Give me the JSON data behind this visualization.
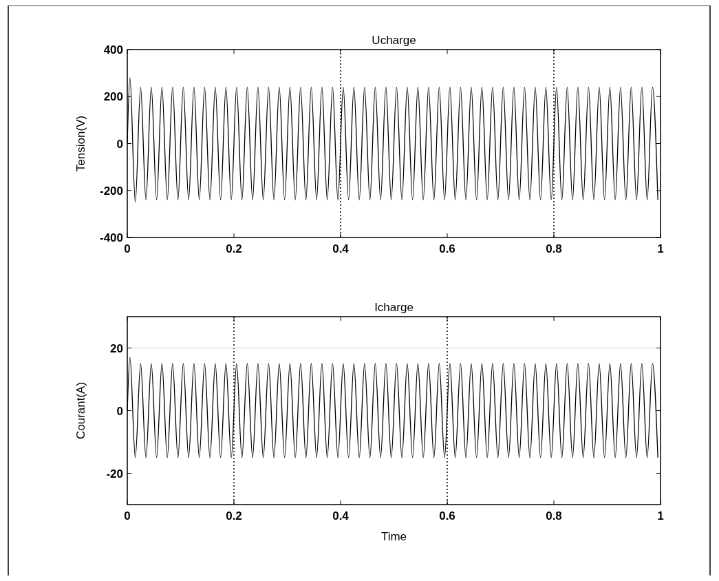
{
  "chart_data": [
    {
      "type": "line",
      "title": "Ucharge",
      "ylabel": "Tension(V)",
      "xlim": [
        0,
        1
      ],
      "xticks": [
        0,
        0.2,
        0.4,
        0.6,
        0.8,
        1
      ],
      "ylim": [
        -400,
        400
      ],
      "yticks": [
        -400,
        -200,
        0,
        200,
        400
      ],
      "grid": false,
      "marker": "none",
      "line_style": "solid",
      "ref_lines": [
        {
          "axis": "x",
          "value": 0.4,
          "color": "#000000",
          "line_style": "dotted"
        },
        {
          "axis": "x",
          "value": 0.8,
          "color": "#000000",
          "line_style": "dotted"
        }
      ],
      "series": [
        {
          "color": "#000000",
          "x": [
            0,
            0.005,
            0.015,
            0.025,
            0.035,
            0.045,
            0.055,
            0.065,
            0.075,
            0.085,
            0.095,
            0.105,
            0.115,
            0.125,
            0.135,
            0.145,
            0.155,
            0.165,
            0.175,
            0.185,
            0.195,
            0.205,
            0.215,
            0.225,
            0.235,
            0.245,
            0.255,
            0.265,
            0.275,
            0.285,
            0.295,
            0.305,
            0.315,
            0.325,
            0.335,
            0.345,
            0.355,
            0.365,
            0.375,
            0.385,
            0.395,
            0.405,
            0.415,
            0.425,
            0.435,
            0.445,
            0.455,
            0.465,
            0.475,
            0.485,
            0.495,
            0.505,
            0.515,
            0.525,
            0.535,
            0.545,
            0.555,
            0.565,
            0.575,
            0.585,
            0.595,
            0.605,
            0.615,
            0.625,
            0.635,
            0.645,
            0.655,
            0.665,
            0.675,
            0.685,
            0.695,
            0.705,
            0.715,
            0.725,
            0.735,
            0.745,
            0.755,
            0.765,
            0.775,
            0.785,
            0.795,
            0.805,
            0.815,
            0.825,
            0.835,
            0.845,
            0.855,
            0.865,
            0.875,
            0.885,
            0.895,
            0.905,
            0.915,
            0.925,
            0.935,
            0.945,
            0.955,
            0.965,
            0.975,
            0.985,
            0.995
          ],
          "values": [
            0,
            280,
            -250,
            240,
            -240,
            240,
            -240,
            240,
            -240,
            240,
            -240,
            240,
            -240,
            240,
            -240,
            240,
            -240,
            240,
            -240,
            240,
            -240,
            240,
            -240,
            240,
            -240,
            240,
            -240,
            240,
            -240,
            240,
            -240,
            240,
            -240,
            240,
            -240,
            240,
            -240,
            240,
            -240,
            240,
            -240,
            240,
            -240,
            240,
            -240,
            240,
            -240,
            240,
            -240,
            240,
            -240,
            240,
            -240,
            240,
            -240,
            240,
            -240,
            240,
            -240,
            240,
            -240,
            240,
            -240,
            240,
            -240,
            240,
            -240,
            240,
            -240,
            240,
            -240,
            240,
            -240,
            240,
            -240,
            240,
            -240,
            240,
            -240,
            240,
            -240,
            240,
            -240,
            240,
            -240,
            240,
            -240,
            240,
            -240,
            240,
            -240,
            240,
            -240,
            240,
            -240,
            240,
            -240,
            240,
            -240,
            240,
            -240
          ]
        }
      ]
    },
    {
      "type": "line",
      "title": "Icharge",
      "xlabel": "Time",
      "ylabel": "Courant(A)",
      "xlim": [
        0,
        1
      ],
      "xticks": [
        0,
        0.2,
        0.4,
        0.6,
        0.8,
        1
      ],
      "ylim": [
        -30,
        30
      ],
      "yticks": [
        -20,
        0,
        20
      ],
      "grid": false,
      "marker": "none",
      "line_style": "solid",
      "ref_lines": [
        {
          "axis": "x",
          "value": 0.2,
          "color": "#000000",
          "line_style": "dotted"
        },
        {
          "axis": "x",
          "value": 0.6,
          "color": "#000000",
          "line_style": "dotted"
        },
        {
          "axis": "y",
          "value": 20,
          "color": "#cccccc",
          "line_style": "solid"
        }
      ],
      "series": [
        {
          "color": "#000000",
          "x": [
            0,
            0.005,
            0.015,
            0.025,
            0.035,
            0.045,
            0.055,
            0.065,
            0.075,
            0.085,
            0.095,
            0.105,
            0.115,
            0.125,
            0.135,
            0.145,
            0.155,
            0.165,
            0.175,
            0.185,
            0.195,
            0.205,
            0.215,
            0.225,
            0.235,
            0.245,
            0.255,
            0.265,
            0.275,
            0.285,
            0.295,
            0.305,
            0.315,
            0.325,
            0.335,
            0.345,
            0.355,
            0.365,
            0.375,
            0.385,
            0.395,
            0.405,
            0.415,
            0.425,
            0.435,
            0.445,
            0.455,
            0.465,
            0.475,
            0.485,
            0.495,
            0.505,
            0.515,
            0.525,
            0.535,
            0.545,
            0.555,
            0.565,
            0.575,
            0.585,
            0.595,
            0.605,
            0.615,
            0.625,
            0.635,
            0.645,
            0.655,
            0.665,
            0.675,
            0.685,
            0.695,
            0.705,
            0.715,
            0.725,
            0.735,
            0.745,
            0.755,
            0.765,
            0.775,
            0.785,
            0.795,
            0.805,
            0.815,
            0.825,
            0.835,
            0.845,
            0.855,
            0.865,
            0.875,
            0.885,
            0.895,
            0.905,
            0.915,
            0.925,
            0.935,
            0.945,
            0.955,
            0.965,
            0.975,
            0.985,
            0.995
          ],
          "values": [
            0,
            17,
            -15,
            15,
            -15,
            15,
            -15,
            15,
            -15,
            15,
            -15,
            15,
            -15,
            15,
            -15,
            15,
            -15,
            15,
            -15,
            15,
            -15,
            15,
            -15,
            15,
            -15,
            15,
            -15,
            15,
            -15,
            15,
            -15,
            15,
            -15,
            15,
            -15,
            15,
            -15,
            15,
            -15,
            15,
            -15,
            15,
            -15,
            15,
            -15,
            15,
            -15,
            15,
            -15,
            15,
            -15,
            15,
            -15,
            15,
            -15,
            15,
            -15,
            15,
            -15,
            15,
            -15,
            15,
            -15,
            15,
            -15,
            15,
            -15,
            15,
            -15,
            15,
            -15,
            15,
            -15,
            15,
            -15,
            15,
            -15,
            15,
            -15,
            15,
            -15,
            15,
            -15,
            15,
            -15,
            15,
            -15,
            15,
            -15,
            15,
            -15,
            15,
            -15,
            15,
            -15,
            15,
            -15,
            15,
            -15,
            15,
            -15
          ]
        }
      ]
    }
  ]
}
